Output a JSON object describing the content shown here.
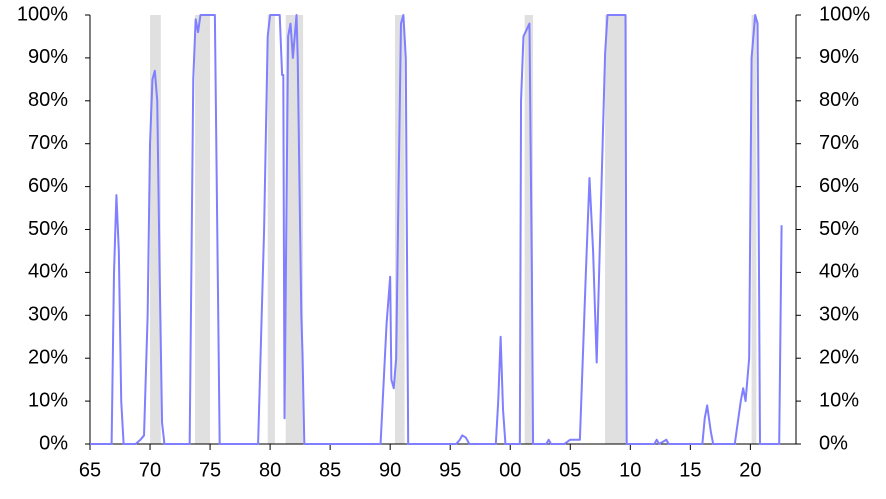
{
  "chart_data": {
    "type": "line",
    "x": [
      1965,
      1966.8,
      1967.0,
      1967.2,
      1967.4,
      1967.6,
      1967.8,
      1968.8,
      1969.2,
      1969.5,
      1969.8,
      1970.0,
      1970.2,
      1970.4,
      1970.6,
      1970.8,
      1971.0,
      1971.2,
      1973.3,
      1973.6,
      1973.8,
      1974.0,
      1974.2,
      1975.4,
      1975.6,
      1975.8,
      1979.0,
      1979.5,
      1979.8,
      1980.0,
      1980.8,
      1981.0,
      1981.1,
      1981.2,
      1981.5,
      1981.7,
      1981.9,
      1982.2,
      1982.3,
      1982.6,
      1982.7,
      1982.85,
      1989.2,
      1989.7,
      1990.0,
      1990.1,
      1990.3,
      1990.5,
      1990.7,
      1990.9,
      1991.1,
      1991.3,
      1991.5,
      1995.5,
      1995.8,
      1996.0,
      1996.3,
      1996.6,
      1998.8,
      1999.0,
      1999.2,
      1999.4,
      1999.6,
      2000.8,
      2000.9,
      2001.1,
      2001.6,
      2001.8,
      2001.9,
      2003.0,
      2003.2,
      2003.4,
      2004.5,
      2005.0,
      2005.8,
      2006.3,
      2006.6,
      2006.9,
      2007.2,
      2007.5,
      2007.9,
      2008.1,
      2009.6,
      2009.7,
      2012.0,
      2012.2,
      2012.4,
      2013.0,
      2013.2,
      2016.0,
      2016.2,
      2016.4,
      2016.7,
      2016.9,
      2018.7,
      2019.2,
      2019.4,
      2019.6,
      2019.9,
      2020.1,
      2020.4,
      2020.6,
      2020.8,
      2022.4,
      2022.6
    ],
    "values": [
      0,
      0,
      40,
      58,
      45,
      10,
      0,
      0,
      1,
      2,
      30,
      70,
      85,
      87,
      80,
      40,
      5,
      0,
      0,
      85,
      99,
      96,
      100,
      100,
      50,
      0,
      0,
      50,
      95,
      100,
      100,
      86,
      86,
      6,
      95,
      98,
      90,
      100,
      90,
      30,
      21,
      0,
      0,
      28,
      39,
      15,
      13,
      20,
      60,
      98,
      100,
      90,
      0,
      0,
      1,
      2,
      1.5,
      0,
      0,
      10,
      25,
      8,
      0,
      0,
      80,
      95,
      98,
      40,
      0,
      0,
      1,
      0,
      0,
      1,
      1,
      40,
      62,
      45,
      19,
      50,
      91,
      100,
      100,
      0,
      0,
      1,
      0,
      1,
      0,
      0,
      6,
      9,
      3,
      0,
      0,
      10,
      13,
      10,
      20,
      90,
      100,
      98,
      0,
      0,
      51
    ],
    "color": "#7f7fff",
    "shaded_periods": [
      [
        1970.0,
        1970.9
      ],
      [
        1973.75,
        1975.0
      ],
      [
        1979.8,
        1980.4
      ],
      [
        1981.3,
        1982.75
      ],
      [
        1990.4,
        1991.2
      ],
      [
        2001.2,
        2001.9
      ],
      [
        2007.9,
        2009.7
      ],
      [
        2020.1,
        2020.5
      ]
    ],
    "shade_color": "#e0e0e0",
    "xlim": [
      1965,
      2023.8
    ],
    "xticks": [
      {
        "value": 1965,
        "label": "65"
      },
      {
        "value": 1970,
        "label": "70"
      },
      {
        "value": 1975,
        "label": "75"
      },
      {
        "value": 1980,
        "label": "80"
      },
      {
        "value": 1985,
        "label": "85"
      },
      {
        "value": 1990,
        "label": "90"
      },
      {
        "value": 1995,
        "label": "95"
      },
      {
        "value": 2000,
        "label": "00"
      },
      {
        "value": 2005,
        "label": "05"
      },
      {
        "value": 2010,
        "label": "10"
      },
      {
        "value": 2015,
        "label": "15"
      },
      {
        "value": 2020,
        "label": "20"
      }
    ],
    "ylim": [
      0,
      100
    ],
    "yticks": [
      {
        "value": 0,
        "label": "0%"
      },
      {
        "value": 10,
        "label": "10%"
      },
      {
        "value": 20,
        "label": "20%"
      },
      {
        "value": 30,
        "label": "30%"
      },
      {
        "value": 40,
        "label": "40%"
      },
      {
        "value": 50,
        "label": "50%"
      },
      {
        "value": 60,
        "label": "60%"
      },
      {
        "value": 70,
        "label": "70%"
      },
      {
        "value": 80,
        "label": "80%"
      },
      {
        "value": 90,
        "label": "90%"
      },
      {
        "value": 100,
        "label": "100%"
      }
    ],
    "y2lim": [
      0,
      100
    ],
    "y2ticks": [
      {
        "value": 0,
        "label": "0%"
      },
      {
        "value": 10,
        "label": "10%"
      },
      {
        "value": 20,
        "label": "20%"
      },
      {
        "value": 30,
        "label": "30%"
      },
      {
        "value": 40,
        "label": "40%"
      },
      {
        "value": 50,
        "label": "50%"
      },
      {
        "value": 60,
        "label": "60%"
      },
      {
        "value": 70,
        "label": "70%"
      },
      {
        "value": 80,
        "label": "80%"
      },
      {
        "value": 90,
        "label": "90%"
      },
      {
        "value": 100,
        "label": "100%"
      }
    ]
  }
}
